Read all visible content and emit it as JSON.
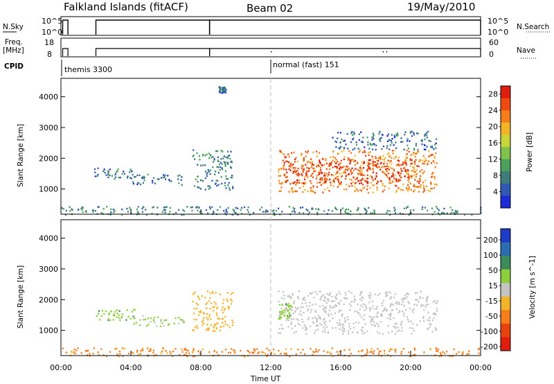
{
  "header": {
    "station": "Falkland Islands (fitACF)",
    "beam": "Beam 02",
    "date": "19/May/2010"
  },
  "chart_data": [
    {
      "type": "line",
      "panel": "noise",
      "left_label": "N.Sky",
      "right_label": "N.Search",
      "left_ticks": [
        "10^5",
        "10^0"
      ],
      "right_ticks": [
        "10^5",
        "10^0"
      ],
      "segments": [
        {
          "x_start": 0.1,
          "x_end": 0.4
        },
        {
          "x_start": 2.0,
          "x_end": 8.5
        },
        {
          "x_start": 8.5,
          "x_end": 24.0
        }
      ]
    },
    {
      "type": "line",
      "panel": "frequency",
      "left_label_line1": "Freq.",
      "left_label_line2": "[MHz]",
      "right_label": "Nave",
      "left_ticks": [
        "18",
        "8"
      ],
      "right_ticks": [
        "60",
        "0"
      ],
      "ylim": [
        8,
        18
      ]
    },
    {
      "type": "table",
      "panel": "cpid",
      "label": "CPID",
      "modes": [
        {
          "name": "themis 3300",
          "x": 0.0
        },
        {
          "name": "normal (fast) 151",
          "x": 12.0
        }
      ]
    },
    {
      "type": "heatmap",
      "panel": "power",
      "ylabel": "Slant Range [km]",
      "xlim": [
        0,
        24
      ],
      "ylim": [
        180,
        4600
      ],
      "yticks": [
        1000,
        2000,
        3000,
        4000
      ],
      "colorbar_label": "Power [dB]",
      "colorbar_ticks": [
        4,
        8,
        12,
        16,
        20,
        24,
        28
      ],
      "colorbar_range": [
        0,
        30
      ],
      "colorbar_colors": [
        "#1e2bd6",
        "#2f59b4",
        "#3f7d7a",
        "#4ca05e",
        "#7fc34a",
        "#c9d63a",
        "#f2b529",
        "#f57d1a",
        "#ee4a12",
        "#e01e10"
      ],
      "regions": [
        {
          "x": [
            1.9,
            4.2
          ],
          "y": [
            1350,
            1700
          ],
          "level": 6
        },
        {
          "x": [
            4.0,
            7.0
          ],
          "y": [
            1150,
            1500
          ],
          "level": 6
        },
        {
          "x": [
            7.5,
            9.8
          ],
          "y": [
            1000,
            2300
          ],
          "level": 8
        },
        {
          "x": [
            9.0,
            9.4
          ],
          "y": [
            4150,
            4350
          ],
          "level": 6
        },
        {
          "x": [
            12.4,
            21.5
          ],
          "y": [
            900,
            2300
          ],
          "level": 22
        },
        {
          "x": [
            12.6,
            20.5
          ],
          "y": [
            1200,
            2000
          ],
          "level": 27
        },
        {
          "x": [
            15.5,
            21.5
          ],
          "y": [
            2300,
            2900
          ],
          "level": 6
        },
        {
          "x": [
            0.0,
            24.0
          ],
          "y": [
            180,
            450
          ],
          "level": 8
        }
      ]
    },
    {
      "type": "heatmap",
      "panel": "velocity",
      "ylabel": "Slant Range [km]",
      "xlabel": "Time UT",
      "xlim": [
        0,
        24
      ],
      "ylim": [
        180,
        4600
      ],
      "xticks": [
        "00:00",
        "04:00",
        "08:00",
        "12:00",
        "16:00",
        "20:00",
        "00:00"
      ],
      "yticks": [
        1000,
        2000,
        3000,
        4000
      ],
      "colorbar_label": "Velocity [m s^-1]",
      "colorbar_ticks": [
        "200",
        "100",
        "50",
        "15",
        "-15",
        "-50",
        "-100",
        "-200"
      ],
      "colorbar_colors": [
        "#1e3cc8",
        "#2a6db0",
        "#3b8c5a",
        "#8ccf3a",
        "#c4c4c4",
        "#f2b529",
        "#f57d1a",
        "#e8420f",
        "#e01e10"
      ],
      "regions": [
        {
          "x": [
            1.9,
            4.2
          ],
          "y": [
            1350,
            1700
          ],
          "value": 40
        },
        {
          "x": [
            4.0,
            7.0
          ],
          "y": [
            1150,
            1500
          ],
          "value": 20
        },
        {
          "x": [
            7.5,
            9.8
          ],
          "y": [
            1000,
            2300
          ],
          "value": -30
        },
        {
          "x": [
            12.4,
            21.5
          ],
          "y": [
            900,
            2300
          ],
          "value": 0
        },
        {
          "x": [
            12.4,
            13.2
          ],
          "y": [
            1400,
            1900
          ],
          "value": 40
        },
        {
          "x": [
            0.0,
            24.0
          ],
          "y": [
            180,
            450
          ],
          "value": -60
        }
      ]
    }
  ]
}
